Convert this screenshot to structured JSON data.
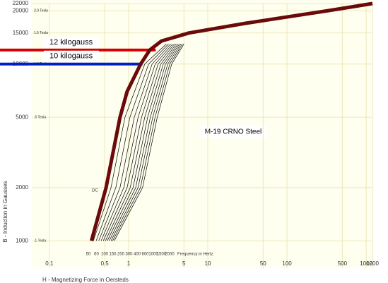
{
  "chart_data": {
    "type": "line",
    "title": "M-19 CRNO Steel",
    "x_label": "H - Magnetizing Force in Oersteds",
    "y_label": "B - Induction in Gausses",
    "frequency_label": "Frequency in Hertz",
    "xlog": true,
    "ylog": true,
    "grid": true,
    "xlim": [
      0.06,
      1200
    ],
    "ylim": [
      700,
      22000
    ],
    "xticks": [
      0.1,
      0.5,
      1,
      5,
      10,
      50,
      100,
      500,
      1000,
      1200
    ],
    "yticks": [
      1000,
      2000,
      5000,
      10000,
      15000,
      20000,
      22000
    ],
    "tesla_labels": [
      {
        "value": 1000,
        "label": ".1 Tesla"
      },
      {
        "value": 5000,
        "label": ".5 Tesla"
      },
      {
        "value": 10000,
        "label": "1.0 Tesla"
      },
      {
        "value": 15000,
        "label": "1.5 Tesla"
      },
      {
        "value": 20000,
        "label": "2.0 Tesla"
      }
    ],
    "reference_lines": [
      {
        "label": "12 kilogauss",
        "value": 12000,
        "x_end": 2.2,
        "color": "#d40000"
      },
      {
        "label": "10 kilogauss",
        "value": 10000,
        "x_end": 1.5,
        "color": "#0020c0"
      }
    ],
    "series": [
      {
        "name": "DC",
        "color": "#6a0a0a",
        "x": [
          0.34,
          0.52,
          0.78,
          0.96,
          1.42,
          1.85,
          2.6,
          5.8,
          30,
          320,
          1200
        ],
        "values": [
          1000,
          2000,
          5000,
          7000,
          10000,
          12000,
          13500,
          15000,
          17000,
          20000,
          22000
        ]
      },
      {
        "name": "50",
        "color": "#000000",
        "x": [
          0.36,
          0.6,
          0.9,
          1.6,
          3
        ],
        "values": [
          1000,
          2000,
          5000,
          10000,
          13000
        ]
      },
      {
        "name": "60",
        "color": "#000000",
        "x": [
          0.39,
          0.69,
          1.04,
          1.79,
          3.2
        ],
        "values": [
          1000,
          2000,
          5000,
          10000,
          13000
        ]
      },
      {
        "name": "100",
        "color": "#000000",
        "x": [
          0.42,
          0.78,
          1.18,
          1.98,
          3.4
        ],
        "values": [
          1000,
          2000,
          5000,
          10000,
          13000
        ]
      },
      {
        "name": "150",
        "color": "#000000",
        "x": [
          0.45,
          0.87,
          1.32,
          2.17,
          3.6
        ],
        "values": [
          1000,
          2000,
          5000,
          10000,
          13000
        ]
      },
      {
        "name": "200",
        "color": "#000000",
        "x": [
          0.48,
          0.96,
          1.46,
          2.36,
          3.8
        ],
        "values": [
          1000,
          2000,
          5000,
          10000,
          13000
        ]
      },
      {
        "name": "300",
        "color": "#000000",
        "x": [
          0.51,
          1.05,
          1.6,
          2.55,
          4
        ],
        "values": [
          1000,
          2000,
          5000,
          10000,
          13000
        ]
      },
      {
        "name": "400",
        "color": "#000000",
        "x": [
          0.54,
          1.14,
          1.74,
          2.74,
          4.2
        ],
        "values": [
          1000,
          2000,
          5000,
          10000,
          13000
        ]
      },
      {
        "name": "600",
        "color": "#000000",
        "x": [
          0.57,
          1.23,
          1.88,
          2.93,
          4.4
        ],
        "values": [
          1000,
          2000,
          5000,
          10000,
          13000
        ]
      },
      {
        "name": "1000",
        "color": "#000000",
        "x": [
          0.6,
          1.32,
          2.02,
          3.12,
          4.6
        ],
        "values": [
          1000,
          2000,
          5000,
          10000,
          13000
        ]
      },
      {
        "name": "1500",
        "color": "#000000",
        "x": [
          0.63,
          1.41,
          2.16,
          3.31,
          4.8
        ],
        "values": [
          1000,
          2000,
          5000,
          10000,
          13000
        ]
      },
      {
        "name": "2000",
        "color": "#000000",
        "x": [
          0.66,
          1.5,
          2.3,
          3.5,
          5
        ],
        "values": [
          1000,
          2000,
          5000,
          10000,
          13000
        ]
      }
    ]
  }
}
